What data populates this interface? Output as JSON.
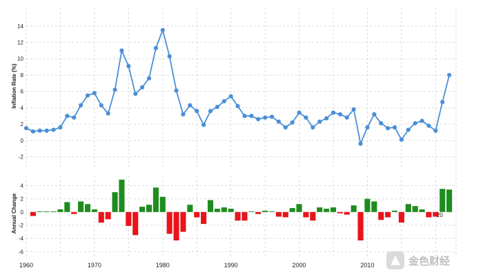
{
  "chart_data": [
    {
      "type": "line",
      "name": "inflation-panel",
      "ylabel": "Inflation Rate (%)",
      "ylim": [
        -3.3,
        15.5
      ],
      "yticks": [
        -2,
        0,
        2,
        4,
        6,
        8,
        10,
        12,
        14
      ],
      "grid": true,
      "line_color": "#4a8fd6",
      "x": [
        1960,
        1961,
        1962,
        1963,
        1964,
        1965,
        1966,
        1967,
        1968,
        1969,
        1970,
        1971,
        1972,
        1973,
        1974,
        1975,
        1976,
        1977,
        1978,
        1979,
        1980,
        1981,
        1982,
        1983,
        1984,
        1985,
        1986,
        1987,
        1988,
        1989,
        1990,
        1991,
        1992,
        1993,
        1994,
        1995,
        1996,
        1997,
        1998,
        1999,
        2000,
        2001,
        2002,
        2003,
        2004,
        2005,
        2006,
        2007,
        2008,
        2009,
        2010,
        2011,
        2012,
        2013,
        2014,
        2015,
        2016,
        2017,
        2018,
        2019,
        2020,
        2021,
        2022
      ],
      "values": [
        1.5,
        1.1,
        1.2,
        1.2,
        1.3,
        1.6,
        3.0,
        2.8,
        4.3,
        5.5,
        5.8,
        4.3,
        3.3,
        6.2,
        11.0,
        9.1,
        5.7,
        6.5,
        7.6,
        11.3,
        13.5,
        10.3,
        6.1,
        3.2,
        4.3,
        3.6,
        1.9,
        3.6,
        4.1,
        4.8,
        5.4,
        4.2,
        3.0,
        3.0,
        2.6,
        2.8,
        2.9,
        2.3,
        1.6,
        2.2,
        3.4,
        2.8,
        1.6,
        2.3,
        2.7,
        3.4,
        3.2,
        2.8,
        3.8,
        -0.4,
        1.6,
        3.2,
        2.1,
        1.5,
        1.6,
        0.1,
        1.3,
        2.1,
        2.4,
        1.8,
        1.2,
        4.7,
        8.0
      ]
    },
    {
      "type": "bar",
      "name": "annual-change-panel",
      "ylabel": "Annual Change",
      "ylim": [
        -6.8,
        5.5
      ],
      "yticks": [
        -6,
        -4,
        -2,
        0,
        2,
        4
      ],
      "grid": true,
      "positive_color": "#1e8c1e",
      "negative_color": "#e8141b",
      "x": [
        1961,
        1962,
        1963,
        1964,
        1965,
        1966,
        1967,
        1968,
        1969,
        1970,
        1971,
        1972,
        1973,
        1974,
        1975,
        1976,
        1977,
        1978,
        1979,
        1980,
        1981,
        1982,
        1983,
        1984,
        1985,
        1986,
        1987,
        1988,
        1989,
        1990,
        1991,
        1992,
        1993,
        1994,
        1995,
        1996,
        1997,
        1998,
        1999,
        2000,
        2001,
        2002,
        2003,
        2004,
        2005,
        2006,
        2007,
        2008,
        2009,
        2010,
        2011,
        2012,
        2013,
        2014,
        2015,
        2016,
        2017,
        2018,
        2019,
        2020,
        2021,
        2022
      ],
      "values": [
        -0.6,
        0.1,
        0.1,
        0.1,
        0.4,
        1.5,
        -0.3,
        1.6,
        1.2,
        0.4,
        -1.6,
        -1.1,
        3.0,
        4.9,
        -2.1,
        -3.5,
        0.8,
        1.1,
        3.7,
        2.3,
        -3.3,
        -4.3,
        -3.0,
        1.1,
        -0.8,
        -1.8,
        1.8,
        0.5,
        0.7,
        0.5,
        -1.3,
        -1.3,
        0.1,
        -0.3,
        0.2,
        0.1,
        -0.7,
        -0.8,
        0.6,
        1.2,
        -0.8,
        -1.3,
        0.7,
        0.5,
        0.7,
        -0.2,
        -0.4,
        1.0,
        -4.3,
        2.0,
        1.6,
        -1.2,
        -0.8,
        0.2,
        -1.6,
        1.2,
        0.9,
        0.4,
        -0.8,
        -0.7,
        3.5,
        3.4
      ]
    }
  ],
  "xaxis": {
    "xlim": [
      1960,
      2023
    ],
    "ticks": [
      "1960",
      "1970",
      "1980",
      "1990",
      "2000",
      "2010"
    ],
    "tick_values": [
      1960,
      1970,
      1980,
      1990,
      2000,
      2010
    ],
    "partial_label": "20"
  },
  "watermark": {
    "text": "金色财经",
    "icon": "coin-logo-icon"
  }
}
